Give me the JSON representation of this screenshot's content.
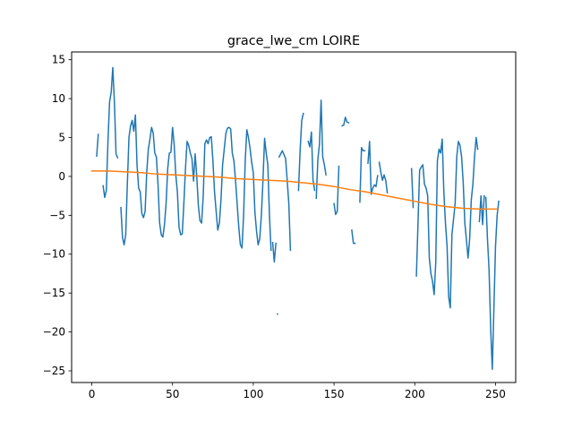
{
  "chart_data": {
    "type": "line",
    "title": "grace_lwe_cm LOIRE",
    "xlabel": "",
    "ylabel": "",
    "xlim": [
      -12.5,
      262.5
    ],
    "ylim": [
      -26.5,
      16.0
    ],
    "xticks": [
      0,
      50,
      100,
      150,
      200,
      250
    ],
    "xtick_labels": [
      "0",
      "50",
      "100",
      "150",
      "200",
      "250"
    ],
    "yticks": [
      -25,
      -20,
      -15,
      -10,
      -5,
      0,
      5,
      10,
      15
    ],
    "ytick_labels": [
      "−25",
      "−20",
      "−15",
      "−10",
      "−5",
      "0",
      "5",
      "10",
      "15"
    ],
    "grid": false,
    "legend": "none",
    "series": [
      {
        "color": "#1f77b4",
        "segments": [
          [
            [
              3,
              2.6
            ],
            [
              4,
              5.4
            ]
          ],
          [
            [
              7,
              -1.2
            ],
            [
              8,
              -2.7
            ],
            [
              9,
              -1.8
            ],
            [
              10,
              4.5
            ],
            [
              11,
              9.6
            ],
            [
              12,
              10.8
            ],
            [
              13,
              14.0
            ],
            [
              14,
              9.5
            ],
            [
              15,
              2.9
            ],
            [
              16,
              2.4
            ]
          ],
          [
            [
              18,
              -4.0
            ],
            [
              19,
              -7.8
            ],
            [
              20,
              -8.8
            ],
            [
              21,
              -7.5
            ],
            [
              22,
              -1.0
            ],
            [
              23,
              5.0
            ],
            [
              24,
              6.5
            ],
            [
              25,
              7.2
            ],
            [
              26,
              5.8
            ],
            [
              27,
              7.9
            ],
            [
              28,
              1.5
            ],
            [
              29,
              -1.5
            ],
            [
              30,
              -2.0
            ],
            [
              31,
              -4.8
            ],
            [
              32,
              -5.3
            ],
            [
              33,
              -4.5
            ],
            [
              34,
              0.5
            ],
            [
              35,
              3.5
            ],
            [
              36,
              4.8
            ],
            [
              37,
              6.3
            ],
            [
              38,
              5.6
            ],
            [
              39,
              3.0
            ],
            [
              40,
              2.5
            ],
            [
              41,
              -1.0
            ],
            [
              42,
              -6.0
            ],
            [
              43,
              -7.5
            ],
            [
              44,
              -7.8
            ],
            [
              45,
              -6.2
            ],
            [
              46,
              -3.5
            ],
            [
              47,
              1.0
            ],
            [
              48,
              3.0
            ],
            [
              49,
              3.1
            ],
            [
              50,
              6.3
            ],
            [
              51,
              4.1
            ],
            [
              52,
              0.2
            ],
            [
              53,
              -2.0
            ],
            [
              54,
              -6.5
            ],
            [
              55,
              -7.5
            ],
            [
              56,
              -7.4
            ],
            [
              57,
              -3.5
            ],
            [
              58,
              1.0
            ],
            [
              59,
              4.5
            ],
            [
              60,
              4.0
            ],
            [
              61,
              3.0
            ],
            [
              62,
              2.3
            ],
            [
              63,
              -0.6
            ],
            [
              64,
              2.9
            ],
            [
              65,
              0.0
            ],
            [
              66,
              -3.8
            ],
            [
              67,
              -5.7
            ],
            [
              68,
              -6.0
            ],
            [
              69,
              -2.5
            ],
            [
              70,
              4.2
            ],
            [
              71,
              4.7
            ],
            [
              72,
              4.2
            ],
            [
              73,
              5.0
            ],
            [
              74,
              5.1
            ],
            [
              75,
              2.0
            ],
            [
              76,
              -2.0
            ],
            [
              77,
              -4.5
            ],
            [
              78,
              -6.9
            ],
            [
              79,
              -6.0
            ],
            [
              80,
              -3.0
            ],
            [
              81,
              1.5
            ],
            [
              82,
              3.5
            ],
            [
              83,
              5.5
            ],
            [
              84,
              6.2
            ],
            [
              85,
              6.3
            ],
            [
              86,
              6.1
            ],
            [
              87,
              3.0
            ],
            [
              88,
              2.0
            ],
            [
              89,
              -0.5
            ],
            [
              90,
              -3.5
            ],
            [
              91,
              -6.5
            ],
            [
              92,
              -8.8
            ],
            [
              93,
              -9.2
            ],
            [
              94,
              -5.0
            ],
            [
              95,
              2.0
            ],
            [
              96,
              6.0
            ],
            [
              97,
              5.0
            ],
            [
              98,
              3.6
            ],
            [
              99,
              1.8
            ],
            [
              100,
              0.5
            ],
            [
              101,
              -4.6
            ],
            [
              102,
              -7.0
            ],
            [
              103,
              -8.8
            ],
            [
              104,
              -8.0
            ],
            [
              105,
              -5.0
            ],
            [
              106,
              -0.5
            ],
            [
              107,
              4.9
            ],
            [
              108,
              3.0
            ],
            [
              109,
              1.5
            ],
            [
              110,
              -5.0
            ],
            [
              111,
              -9.5
            ]
          ],
          [
            [
              112,
              -8.5
            ],
            [
              113,
              -11.0
            ],
            [
              114,
              -8.6
            ]
          ],
          [
            [
              115,
              -17.7
            ]
          ],
          [
            [
              116,
              2.5
            ],
            [
              117,
              2.9
            ],
            [
              118,
              3.3
            ],
            [
              119,
              2.8
            ],
            [
              120,
              2.3
            ],
            [
              121,
              -0.5
            ],
            [
              122,
              -3.5
            ],
            [
              123,
              -9.5
            ]
          ],
          [
            [
              128,
              -1.8
            ],
            [
              129,
              3.3
            ],
            [
              130,
              7.2
            ],
            [
              131,
              8.1
            ]
          ],
          [
            [
              134,
              4.5
            ],
            [
              135,
              3.8
            ],
            [
              136,
              5.7
            ],
            [
              137,
              -0.5
            ],
            [
              138,
              -1.8
            ]
          ],
          [
            [
              139,
              -2.8
            ],
            [
              140,
              2.2
            ],
            [
              141,
              4.2
            ],
            [
              142,
              9.8
            ],
            [
              143,
              2.5
            ],
            [
              144,
              1.5
            ],
            [
              145,
              0.2
            ]
          ],
          [
            [
              150,
              -3.5
            ],
            [
              151,
              -4.9
            ],
            [
              152,
              -4.5
            ],
            [
              153,
              1.3
            ]
          ],
          [
            [
              155,
              6.5
            ],
            [
              156,
              6.6
            ],
            [
              157,
              7.6
            ],
            [
              158,
              7.0
            ],
            [
              159,
              6.9
            ]
          ],
          [
            [
              161,
              -6.9
            ],
            [
              162,
              -8.6
            ],
            [
              163,
              -8.6
            ]
          ],
          [
            [
              166,
              -3.3
            ],
            [
              167,
              3.7
            ],
            [
              168,
              3.3
            ],
            [
              169,
              3.3
            ]
          ],
          [
            [
              171,
              1.7
            ],
            [
              172,
              4.5
            ],
            [
              173,
              -2.3
            ],
            [
              174,
              -1.5
            ],
            [
              175,
              -1.1
            ],
            [
              176,
              -1.3
            ],
            [
              177,
              0.1
            ]
          ],
          [
            [
              178,
              1.8
            ],
            [
              179,
              0.5
            ],
            [
              180,
              -0.5
            ],
            [
              181,
              0.2
            ],
            [
              182,
              -0.5
            ],
            [
              183,
              -2.1
            ]
          ],
          [
            [
              198,
              1.0
            ],
            [
              199,
              -4.0
            ]
          ],
          [
            [
              201,
              -12.8
            ],
            [
              202,
              -6.0
            ],
            [
              203,
              0.8
            ],
            [
              204,
              1.2
            ],
            [
              205,
              1.5
            ],
            [
              206,
              -1.0
            ],
            [
              207,
              -1.5
            ],
            [
              208,
              -2.5
            ],
            [
              209,
              -10.5
            ],
            [
              210,
              -12.5
            ],
            [
              211,
              -13.5
            ],
            [
              212,
              -15.2
            ],
            [
              213,
              -11.0
            ],
            [
              214,
              2.0
            ],
            [
              215,
              3.5
            ],
            [
              216,
              3.0
            ],
            [
              217,
              4.8
            ],
            [
              218,
              -2.0
            ],
            [
              219,
              -6.0
            ],
            [
              220,
              -9.0
            ],
            [
              221,
              -15.5
            ],
            [
              222,
              -16.9
            ],
            [
              223,
              -7.5
            ],
            [
              224,
              -5.5
            ],
            [
              225,
              -3.5
            ],
            [
              226,
              2.5
            ],
            [
              227,
              4.5
            ],
            [
              228,
              4.0
            ],
            [
              229,
              2.5
            ],
            [
              230,
              -0.8
            ],
            [
              231,
              -6.0
            ],
            [
              232,
              -8.2
            ],
            [
              233,
              -10.5
            ],
            [
              234,
              -8.0
            ],
            [
              235,
              -3.0
            ],
            [
              236,
              -1.0
            ],
            [
              237,
              2.5
            ],
            [
              238,
              5.0
            ],
            [
              239,
              3.5
            ]
          ],
          [
            [
              240,
              -5.8
            ],
            [
              241,
              -2.5
            ],
            [
              242,
              -6.2
            ],
            [
              243,
              -2.5
            ]
          ],
          [
            [
              244,
              -2.7
            ],
            [
              245,
              -8.0
            ],
            [
              246,
              -12.0
            ],
            [
              247,
              -19.5
            ],
            [
              248,
              -24.8
            ],
            [
              249,
              -17.0
            ],
            [
              250,
              -9.0
            ],
            [
              251,
              -5.0
            ],
            [
              252,
              -3.2
            ]
          ]
        ]
      },
      {
        "color": "#ff7f0e",
        "segments": [
          [
            [
              0,
              0.7
            ],
            [
              10,
              0.7
            ],
            [
              20,
              0.6
            ],
            [
              30,
              0.5
            ],
            [
              40,
              0.3
            ],
            [
              50,
              0.2
            ],
            [
              60,
              0.1
            ],
            [
              70,
              0.0
            ],
            [
              80,
              -0.1
            ],
            [
              90,
              -0.3
            ],
            [
              100,
              -0.4
            ],
            [
              110,
              -0.5
            ],
            [
              120,
              -0.6
            ],
            [
              130,
              -0.8
            ],
            [
              140,
              -1.0
            ],
            [
              150,
              -1.3
            ],
            [
              160,
              -1.7
            ],
            [
              170,
              -2.0
            ],
            [
              180,
              -2.4
            ],
            [
              190,
              -2.8
            ],
            [
              200,
              -3.2
            ],
            [
              210,
              -3.6
            ],
            [
              220,
              -3.9
            ],
            [
              230,
              -4.1
            ],
            [
              240,
              -4.2
            ],
            [
              251,
              -4.2
            ]
          ]
        ]
      }
    ]
  }
}
